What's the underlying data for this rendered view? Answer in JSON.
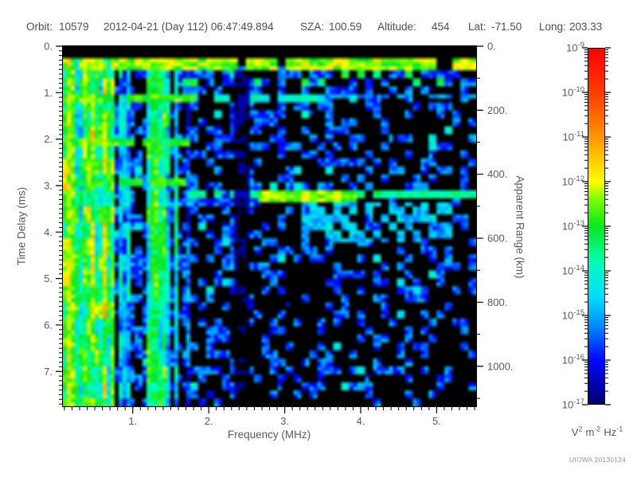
{
  "header": {
    "orbit_label": "Orbit:",
    "orbit_value": "10579",
    "datetime": "2012-04-21 (Day 112) 06:47:49.894",
    "sza_label": "SZA:",
    "sza_value": "100.59",
    "altitude_label": "Altitude:",
    "altitude_value": "454",
    "lat_label": "Lat:",
    "lat_value": "-71.50",
    "long_label": "Long:",
    "long_value": "203.33"
  },
  "watermark": "UIOWA 20130124",
  "chart_data": {
    "type": "heatmap",
    "description": "Radar sounder ionogram: received spectral density vs frequency and time delay",
    "xlabel": "Frequency (MHz)",
    "ylabel_left": "Time Delay (ms)",
    "ylabel_right": "Apparent Range (km)",
    "xlim": [
      0.08,
      5.52
    ],
    "ylim_delay_ms": [
      0,
      7.75
    ],
    "ylim_apparent_range_km": [
      0,
      1125
    ],
    "y_axis_downward": true,
    "x_ticks": {
      "values": [
        1,
        2,
        3,
        4,
        5
      ],
      "labels": [
        "1.",
        "2.",
        "3.",
        "4.",
        "5."
      ],
      "minor_step": 0.1
    },
    "y_ticks": {
      "values": [
        0,
        1,
        2,
        3,
        4,
        5,
        6,
        7
      ],
      "labels": [
        "0.",
        "1.",
        "2.",
        "3.",
        "4.",
        "5.",
        "6.",
        "7."
      ],
      "minor_step": 0.1
    },
    "right_ticks": {
      "values": [
        0,
        200,
        400,
        600,
        800,
        1000
      ],
      "labels": [
        "0.",
        "200.",
        "400.",
        "600.",
        "800.",
        "1000."
      ],
      "minor_step": 100
    },
    "colorbar": {
      "scale": "log",
      "min": 1e-17,
      "max": 1e-09,
      "base": "10",
      "tick_exponents": [
        -9,
        -10,
        -11,
        -12,
        -13,
        -14,
        -15,
        -16,
        -17
      ],
      "unit_parts": [
        [
          "V",
          "2"
        ],
        [
          "m",
          "-2"
        ],
        [
          "Hz",
          "-1"
        ]
      ],
      "stops": [
        [
          0.0,
          "#000070"
        ],
        [
          0.125,
          "#0008ff"
        ],
        [
          0.22,
          "#008cff"
        ],
        [
          0.3,
          "#00dcff"
        ],
        [
          0.4,
          "#00ffb4"
        ],
        [
          0.5,
          "#0ae61e"
        ],
        [
          0.575,
          "#78ff00"
        ],
        [
          0.625,
          "#ffff00"
        ],
        [
          0.75,
          "#ff9600"
        ],
        [
          0.875,
          "#ff3c00"
        ],
        [
          1.0,
          "#ff0000"
        ]
      ]
    },
    "heatmap": {
      "grid": {
        "cols": 104,
        "rows": 90
      },
      "seed": 7,
      "background": "#000000",
      "features": [
        {
          "kind": "speckle",
          "freq": [
            0.08,
            5.52
          ],
          "delay": [
            0.45,
            7.75
          ],
          "prob": 0.62,
          "freq_falloff": 0.5,
          "delay_falloff": 0.35,
          "level": [
            0.07,
            0.28
          ],
          "bright_prob": 0.05,
          "bright_level": [
            0.28,
            0.4
          ],
          "note": "background blue noise, sparser to lower right"
        },
        {
          "kind": "vstripes",
          "freq": [
            0.08,
            0.74
          ],
          "delay": [
            0.26,
            7.75
          ],
          "fill": 0.92,
          "level": [
            0.28,
            0.6
          ],
          "note": "dense green/cyan low-frequency interference stripes"
        },
        {
          "kind": "vstripes",
          "freq": [
            0.74,
            1.2
          ],
          "delay": [
            0.26,
            7.75
          ],
          "fill": 0.35,
          "level": [
            0.18,
            0.45
          ],
          "note": "dark patchy column"
        },
        {
          "kind": "vstripes",
          "freq": [
            1.2,
            1.48
          ],
          "delay": [
            0.26,
            7.75
          ],
          "fill": 0.8,
          "level": [
            0.25,
            0.52
          ]
        },
        {
          "kind": "vstripes",
          "freq": [
            1.48,
            1.74
          ],
          "delay": [
            0.26,
            7.75
          ],
          "fill": 0.5,
          "level": [
            0.15,
            0.4
          ]
        },
        {
          "kind": "vline",
          "freq": 0.15,
          "delay": [
            0.26,
            7.75
          ],
          "level": 0.6
        },
        {
          "kind": "vline",
          "freq": 0.21,
          "delay": [
            0.26,
            7.75
          ],
          "level": 0.55
        },
        {
          "kind": "vline",
          "freq": 1.28,
          "delay": [
            0.26,
            7.75
          ],
          "level": 0.46
        },
        {
          "kind": "hband",
          "delay": [
            0.27,
            0.48
          ],
          "freq": [
            0.08,
            5.52
          ],
          "level": [
            0.5,
            0.66
          ],
          "gap_prob": 0.06,
          "note": "bright green band near 0.35 ms across all frequencies"
        },
        {
          "kind": "blobs",
          "delay": [
            0.5,
            0.9
          ],
          "freq": [
            1.5,
            5.4
          ],
          "prob": 0.12,
          "level": [
            0.35,
            0.55
          ]
        },
        {
          "kind": "hband",
          "delay": [
            1.03,
            1.2
          ],
          "freq": [
            0.08,
            1.8
          ],
          "level": [
            0.48,
            0.6
          ],
          "gap_prob": 0.05,
          "note": "green band at 1.1 ms, low freq"
        },
        {
          "kind": "hband",
          "delay": [
            1.03,
            1.18
          ],
          "freq": [
            1.8,
            3.6
          ],
          "level": [
            0.3,
            0.42
          ],
          "gap_prob": 0.3,
          "note": "cyan dashes at 1.1 ms"
        },
        {
          "kind": "hband",
          "delay": [
            1.03,
            1.16
          ],
          "freq": [
            3.6,
            5.52
          ],
          "level": [
            0.16,
            0.28
          ],
          "gap_prob": 0.3
        },
        {
          "kind": "hband",
          "delay": [
            1.95,
            2.13
          ],
          "freq": [
            0.08,
            1.75
          ],
          "level": [
            0.45,
            0.58
          ],
          "gap_prob": 0.1,
          "note": "band at 2.0 ms, low freq"
        },
        {
          "kind": "hband",
          "delay": [
            2.84,
            3.0
          ],
          "freq": [
            0.08,
            1.7
          ],
          "level": [
            0.42,
            0.56
          ],
          "gap_prob": 0.12,
          "note": "band at 2.9 ms, low freq"
        },
        {
          "kind": "hband",
          "delay": [
            3.12,
            3.3
          ],
          "freq": [
            1.7,
            5.52
          ],
          "level": [
            0.36,
            0.48
          ],
          "gap_prob": 0.12,
          "note": "ionospheric echo trace at 3.2 ms"
        },
        {
          "kind": "hband",
          "delay": [
            3.1,
            3.33
          ],
          "freq": [
            2.62,
            3.95
          ],
          "level": [
            0.5,
            0.63
          ],
          "gap_prob": 0.08,
          "note": "bright green core of echo trace"
        },
        {
          "kind": "blobs",
          "delay": [
            3.36,
            4.25
          ],
          "freq": [
            3.1,
            5.2
          ],
          "prob": 0.5,
          "level": [
            0.2,
            0.36
          ],
          "note": "diffuse scatter below echo"
        },
        {
          "kind": "darken",
          "freq": [
            2.33,
            2.52
          ],
          "delay": [
            0.48,
            7.75
          ],
          "factor": 0.15,
          "note": "dark vertical gap near 2.4 MHz"
        },
        {
          "kind": "blackout",
          "delay": [
            0,
            0.27
          ],
          "freq": [
            0.08,
            5.52
          ],
          "note": "black band at top"
        }
      ]
    }
  }
}
